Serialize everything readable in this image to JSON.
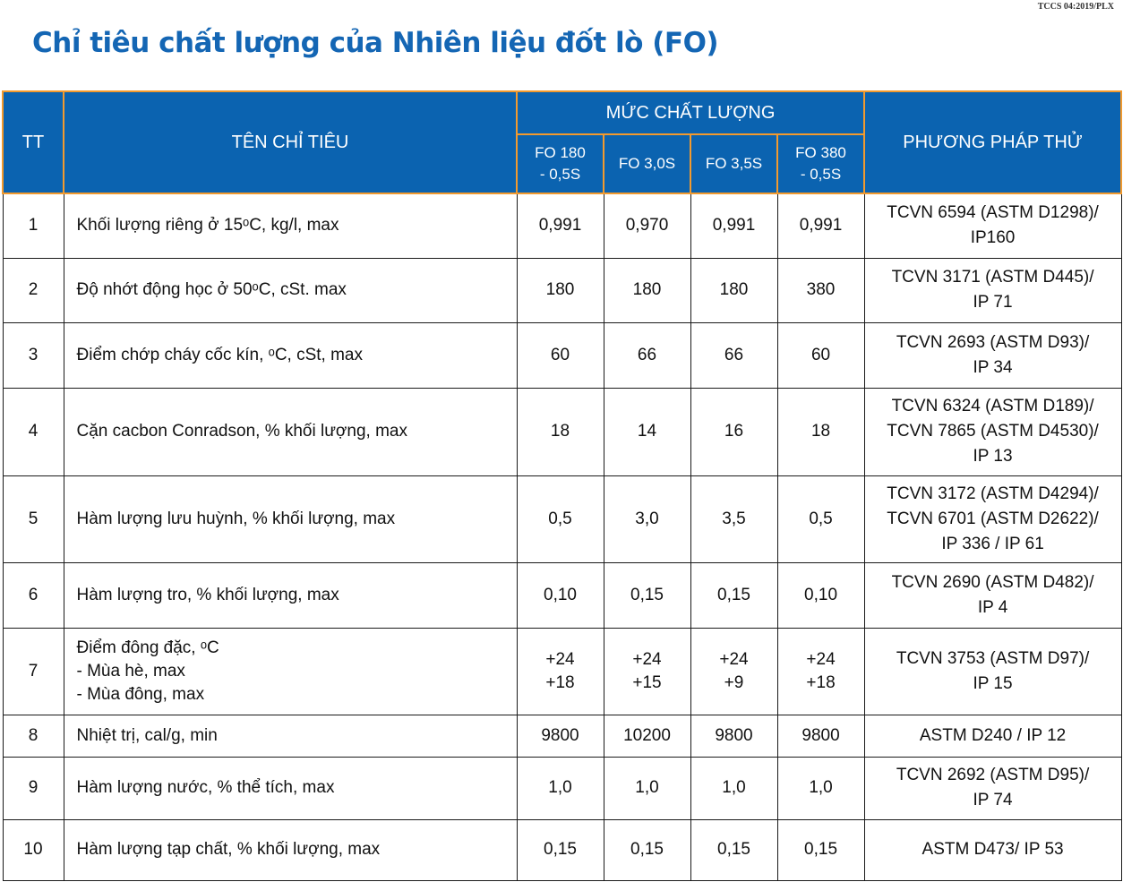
{
  "header": {
    "std_code": "TCCS 04:2019/PLX",
    "title": "Chỉ tiêu chất lượng của Nhiên liệu đốt lò (FO)"
  },
  "table": {
    "col_tt": "TT",
    "col_name": "TÊN CHỈ TIÊU",
    "col_quality": "MỨC CHẤT LƯỢNG",
    "col_method": "PHƯƠNG PHÁP THỬ",
    "grades": [
      [
        "FO 180",
        "- 0,5S"
      ],
      [
        "FO 3,0S"
      ],
      [
        "FO 3,5S"
      ],
      [
        "FO 380",
        "- 0,5S"
      ]
    ],
    "rows": [
      {
        "tt": "1",
        "name": [
          "Khối lượng riêng ở 15ᵒC, kg/l, max"
        ],
        "values": [
          "0,991",
          "0,970",
          "0,991",
          "0,991"
        ],
        "method": [
          "TCVN 6594 (ASTM D1298)/",
          "IP160"
        ]
      },
      {
        "tt": "2",
        "name": [
          "Độ nhớt động học ở 50ᵒC, cSt. max"
        ],
        "values": [
          "180",
          "180",
          "180",
          "380"
        ],
        "method": [
          "TCVN 3171 (ASTM D445)/",
          "IP 71"
        ]
      },
      {
        "tt": "3",
        "name": [
          "Điểm chớp cháy cốc kín, ᵒC, cSt, max"
        ],
        "values": [
          "60",
          "66",
          "66",
          "60"
        ],
        "method": [
          "TCVN 2693 (ASTM D93)/",
          "IP 34"
        ]
      },
      {
        "tt": "4",
        "name": [
          "Cặn cacbon Conradson, % khối lượng, max"
        ],
        "values": [
          "18",
          "14",
          "16",
          "18"
        ],
        "method": [
          "TCVN 6324 (ASTM D189)/",
          "TCVN 7865 (ASTM D4530)/",
          "IP 13"
        ]
      },
      {
        "tt": "5",
        "name": [
          "Hàm lượng lưu huỳnh, % khối lượng, max"
        ],
        "values": [
          "0,5",
          "3,0",
          "3,5",
          "0,5"
        ],
        "method": [
          "TCVN 3172 (ASTM D4294)/",
          "TCVN 6701 (ASTM D2622)/",
          "IP 336 / IP 61"
        ]
      },
      {
        "tt": "6",
        "name": [
          "Hàm lượng tro, % khối lượng, max"
        ],
        "values": [
          "0,10",
          "0,15",
          "0,15",
          "0,10"
        ],
        "method": [
          "TCVN 2690 (ASTM D482)/",
          "IP 4"
        ]
      },
      {
        "tt": "7",
        "name": [
          "Điểm đông đặc, ᵒC",
          "- Mùa hè, max",
          "- Mùa đông, max"
        ],
        "values": [
          "+24\n+18",
          "+24\n+15",
          "+24\n+9",
          "+24\n+18"
        ],
        "method": [
          "TCVN 3753 (ASTM D97)/",
          "IP 15"
        ]
      },
      {
        "tt": "8",
        "name": [
          "Nhiệt trị, cal/g, min"
        ],
        "values": [
          "9800",
          "10200",
          "9800",
          "9800"
        ],
        "method": [
          "ASTM D240 / IP 12"
        ]
      },
      {
        "tt": "9",
        "name": [
          "Hàm lượng nước, % thể tích, max"
        ],
        "values": [
          "1,0",
          "1,0",
          "1,0",
          "1,0"
        ],
        "method": [
          "TCVN 2692 (ASTM D95)/",
          "IP 74"
        ]
      },
      {
        "tt": "10",
        "name": [
          "Hàm lượng tạp chất, % khối lượng, max"
        ],
        "values": [
          "0,15",
          "0,15",
          "0,15",
          "0,15"
        ],
        "method": [
          "ASTM D473/ IP 53"
        ]
      }
    ]
  }
}
